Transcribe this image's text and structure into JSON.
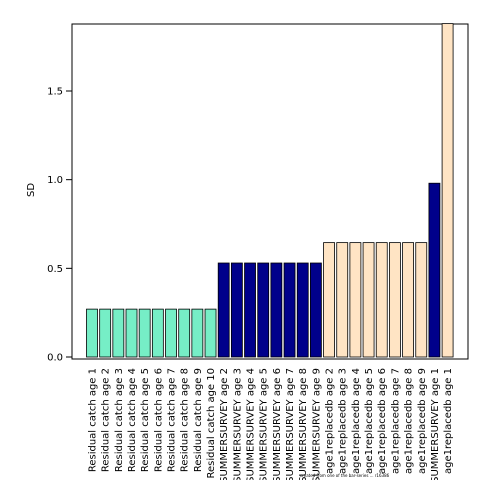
{
  "chart_data": {
    "type": "bar",
    "title": "",
    "xlabel": "",
    "ylabel": "SD",
    "ylim": [
      0,
      1.9
    ],
    "yticks": [
      "0.0",
      "0.5",
      "1.0",
      "1.5"
    ],
    "grid": false,
    "legend": "none",
    "footnote": "created from one of the bar-series ... r16386",
    "categories": [
      "Residual catch age 1",
      "Residual catch age 2",
      "Residual catch age 3",
      "Residual catch age 4",
      "Residual catch age 5",
      "Residual catch age 6",
      "Residual catch age 7",
      "Residual catch age 8",
      "Residual catch age 9",
      "Residual catch age 10",
      "SUMMERSURVEY age 2",
      "SUMMERSURVEY age 3",
      "SUMMERSURVEY age 4",
      "SUMMERSURVEY age 5",
      "SUMMERSURVEY age 6",
      "SUMMERSURVEY age 7",
      "SUMMERSURVEY age 8",
      "SUMMERSURVEY age 9",
      "age1replacedb age 2",
      "age1replacedb age 3",
      "age1replacedb age 4",
      "age1replacedb age 5",
      "age1replacedb age 6",
      "age1replacedb age 7",
      "age1replacedb age 8",
      "age1replacedb age 9",
      "SUMMERSURVEY age 1",
      "age1replacedb age 1"
    ],
    "values": [
      0.27,
      0.27,
      0.27,
      0.27,
      0.27,
      0.27,
      0.27,
      0.27,
      0.27,
      0.27,
      0.53,
      0.53,
      0.53,
      0.53,
      0.53,
      0.53,
      0.53,
      0.53,
      0.645,
      0.645,
      0.645,
      0.645,
      0.645,
      0.645,
      0.645,
      0.645,
      0.98,
      1.88
    ],
    "colors": [
      "#76EEC6",
      "#76EEC6",
      "#76EEC6",
      "#76EEC6",
      "#76EEC6",
      "#76EEC6",
      "#76EEC6",
      "#76EEC6",
      "#76EEC6",
      "#76EEC6",
      "#00008B",
      "#00008B",
      "#00008B",
      "#00008B",
      "#00008B",
      "#00008B",
      "#00008B",
      "#00008B",
      "#FFE4C4",
      "#FFE4C4",
      "#FFE4C4",
      "#FFE4C4",
      "#FFE4C4",
      "#FFE4C4",
      "#FFE4C4",
      "#FFE4C4",
      "#00008B",
      "#FFE4C4"
    ]
  }
}
